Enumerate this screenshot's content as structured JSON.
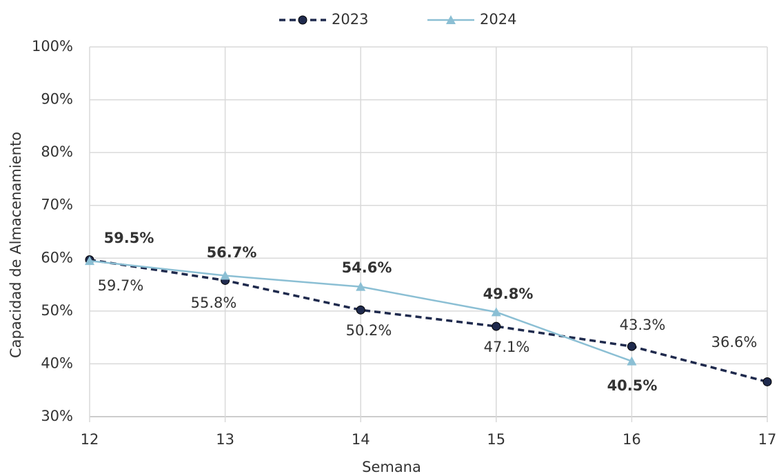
{
  "chart_data": {
    "type": "line",
    "x_label": "Semana",
    "y_label": "Capacidad de Almacenamiento",
    "x": [
      12,
      13,
      14,
      15,
      16,
      17
    ],
    "series": [
      {
        "name": "2023",
        "color": "#1f2a4d",
        "dashed": true,
        "marker": "circle",
        "values": [
          59.7,
          55.8,
          50.2,
          47.1,
          43.3,
          36.6
        ],
        "value_labels": [
          "59.7%",
          "55.8%",
          "50.2%",
          "47.1%",
          "43.3%",
          "36.6%"
        ]
      },
      {
        "name": "2024",
        "color": "#8bbfd4",
        "dashed": false,
        "marker": "triangle",
        "values": [
          59.5,
          56.7,
          54.6,
          49.8,
          40.5,
          null
        ],
        "value_labels": [
          "59.5%",
          "56.7%",
          "54.6%",
          "49.8%",
          "40.5%",
          null
        ]
      }
    ],
    "xlim": [
      12,
      17
    ],
    "xticks": [
      12,
      13,
      14,
      15,
      16,
      17
    ],
    "ylim": [
      30,
      100
    ],
    "yticks": [
      {
        "value": 30,
        "label": "30%"
      },
      {
        "value": 40,
        "label": "40%"
      },
      {
        "value": 50,
        "label": "50%"
      },
      {
        "value": 60,
        "label": "60%"
      },
      {
        "value": 70,
        "label": "70%"
      },
      {
        "value": 80,
        "label": "80%"
      },
      {
        "value": 90,
        "label": "90%"
      },
      {
        "value": 100,
        "label": "100%"
      }
    ],
    "grid": true,
    "legend": "top"
  }
}
